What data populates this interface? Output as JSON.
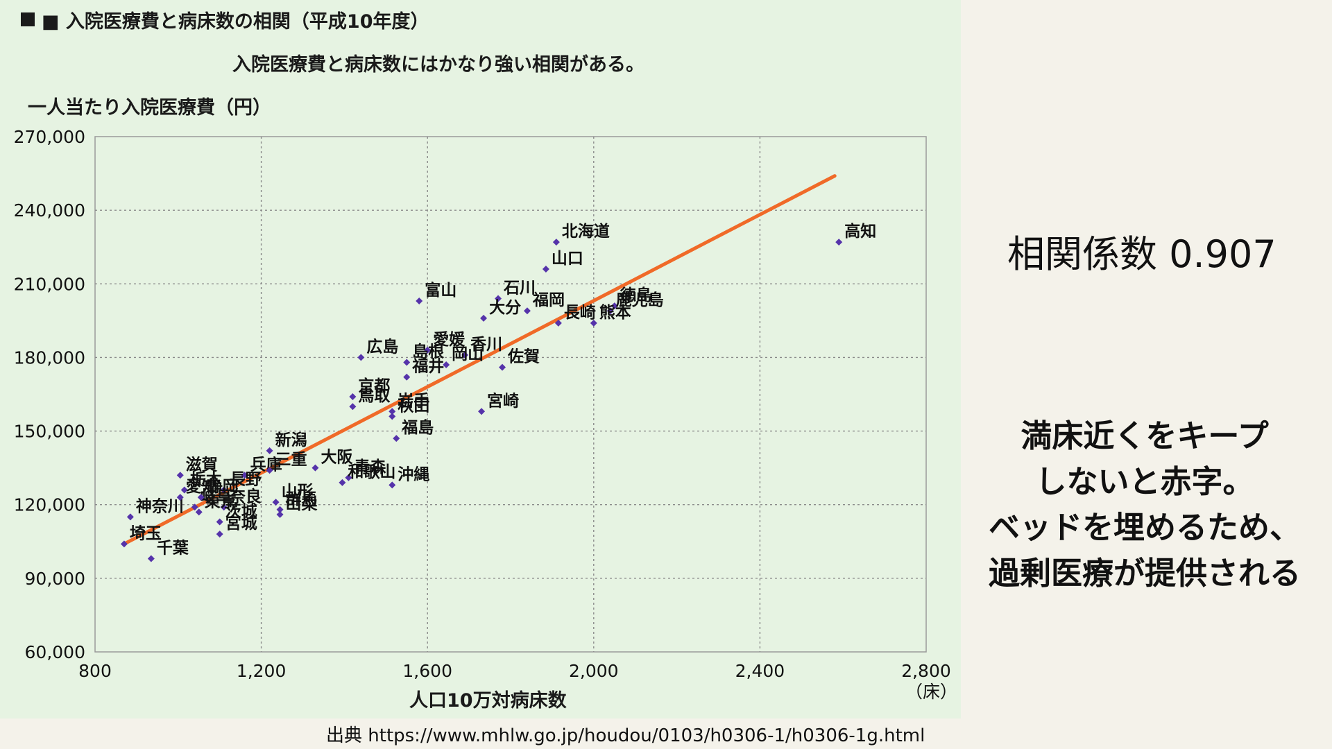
{
  "chart_data": {
    "type": "scatter",
    "title": "■ 入院医療費と病床数の相関（平成10年度）",
    "subtitle": "入院医療費と病床数にはかなり強い相関がある。",
    "ylabel": "一人当たり入院医療費（円）",
    "xlabel": "人口10万対病床数",
    "x_unit": "（床）",
    "xlim": [
      800,
      2800
    ],
    "ylim": [
      60000,
      270000
    ],
    "x_ticks": [
      800,
      1200,
      1600,
      2000,
      2400,
      2800
    ],
    "x_tick_labels": [
      "800",
      "1,200",
      "1,600",
      "2,000",
      "2,400",
      "2,800"
    ],
    "y_ticks": [
      60000,
      90000,
      120000,
      150000,
      180000,
      210000,
      240000,
      270000
    ],
    "y_tick_labels": [
      "60,000",
      "90,000",
      "120,000",
      "150,000",
      "180,000",
      "210,000",
      "240,000",
      "270,000"
    ],
    "grid": true,
    "trendline": {
      "x": [
        870,
        2580
      ],
      "y": [
        104000,
        254000
      ],
      "color": "#f06a28"
    },
    "point_color": "#5533aa",
    "points": [
      {
        "name": "北海道",
        "x": 1910,
        "y": 227000
      },
      {
        "name": "高知",
        "x": 2590,
        "y": 227000
      },
      {
        "name": "山口",
        "x": 1885,
        "y": 216000
      },
      {
        "name": "富山",
        "x": 1580,
        "y": 203000
      },
      {
        "name": "石川",
        "x": 1770,
        "y": 204000
      },
      {
        "name": "福岡",
        "x": 1840,
        "y": 199000
      },
      {
        "name": "徳島",
        "x": 2050,
        "y": 201000
      },
      {
        "name": "鹿児島",
        "x": 2040,
        "y": 199000
      },
      {
        "name": "大分",
        "x": 1735,
        "y": 196000
      },
      {
        "name": "長崎",
        "x": 1915,
        "y": 194000
      },
      {
        "name": "熊本",
        "x": 2000,
        "y": 194000
      },
      {
        "name": "愛媛",
        "x": 1600,
        "y": 183000
      },
      {
        "name": "香川",
        "x": 1690,
        "y": 181000
      },
      {
        "name": "広島",
        "x": 1440,
        "y": 180000
      },
      {
        "name": "島根",
        "x": 1550,
        "y": 178000
      },
      {
        "name": "岡山",
        "x": 1645,
        "y": 177000
      },
      {
        "name": "佐賀",
        "x": 1780,
        "y": 176000
      },
      {
        "name": "福井",
        "x": 1550,
        "y": 172000
      },
      {
        "name": "京都",
        "x": 1420,
        "y": 164000
      },
      {
        "name": "鳥取",
        "x": 1420,
        "y": 160000
      },
      {
        "name": "岩手",
        "x": 1515,
        "y": 158000
      },
      {
        "name": "秋田",
        "x": 1515,
        "y": 156000
      },
      {
        "name": "宮崎",
        "x": 1730,
        "y": 158000
      },
      {
        "name": "福島",
        "x": 1525,
        "y": 147000
      },
      {
        "name": "新潟",
        "x": 1220,
        "y": 142000
      },
      {
        "name": "大阪",
        "x": 1330,
        "y": 135000
      },
      {
        "name": "青森",
        "x": 1410,
        "y": 131000
      },
      {
        "name": "和歌山",
        "x": 1395,
        "y": 129000
      },
      {
        "name": "沖縄",
        "x": 1515,
        "y": 128000
      },
      {
        "name": "兵庫",
        "x": 1160,
        "y": 132000
      },
      {
        "name": "三重",
        "x": 1220,
        "y": 134000
      },
      {
        "name": "滋賀",
        "x": 1005,
        "y": 132000
      },
      {
        "name": "栃木",
        "x": 1015,
        "y": 126000
      },
      {
        "name": "長野",
        "x": 1110,
        "y": 126000
      },
      {
        "name": "山形",
        "x": 1235,
        "y": 121000
      },
      {
        "name": "群馬",
        "x": 1245,
        "y": 118000
      },
      {
        "name": "奈良",
        "x": 1110,
        "y": 119000
      },
      {
        "name": "神奈川",
        "x": 885,
        "y": 115000
      },
      {
        "name": "愛知",
        "x": 1005,
        "y": 123000
      },
      {
        "name": "岐阜",
        "x": 1040,
        "y": 119000
      },
      {
        "name": "静岡",
        "x": 1055,
        "y": 123000
      },
      {
        "name": "茨城",
        "x": 1100,
        "y": 113000
      },
      {
        "name": "宮城",
        "x": 1100,
        "y": 108000
      },
      {
        "name": "東京",
        "x": 1050,
        "y": 117000
      },
      {
        "name": "山梨",
        "x": 1245,
        "y": 116000
      },
      {
        "name": "埼玉",
        "x": 870,
        "y": 104000
      },
      {
        "name": "千葉",
        "x": 935,
        "y": 98000
      }
    ]
  },
  "side": {
    "correlation": "相関係数 0.907",
    "message_lines": [
      "満床近くをキープ",
      "しないと赤字。",
      "ベッドを埋めるため、",
      "過剰医療が提供される"
    ]
  },
  "source": "出典 https://www.mhlw.go.jp/houdou/0103/h0306-1/h0306-1g.html"
}
